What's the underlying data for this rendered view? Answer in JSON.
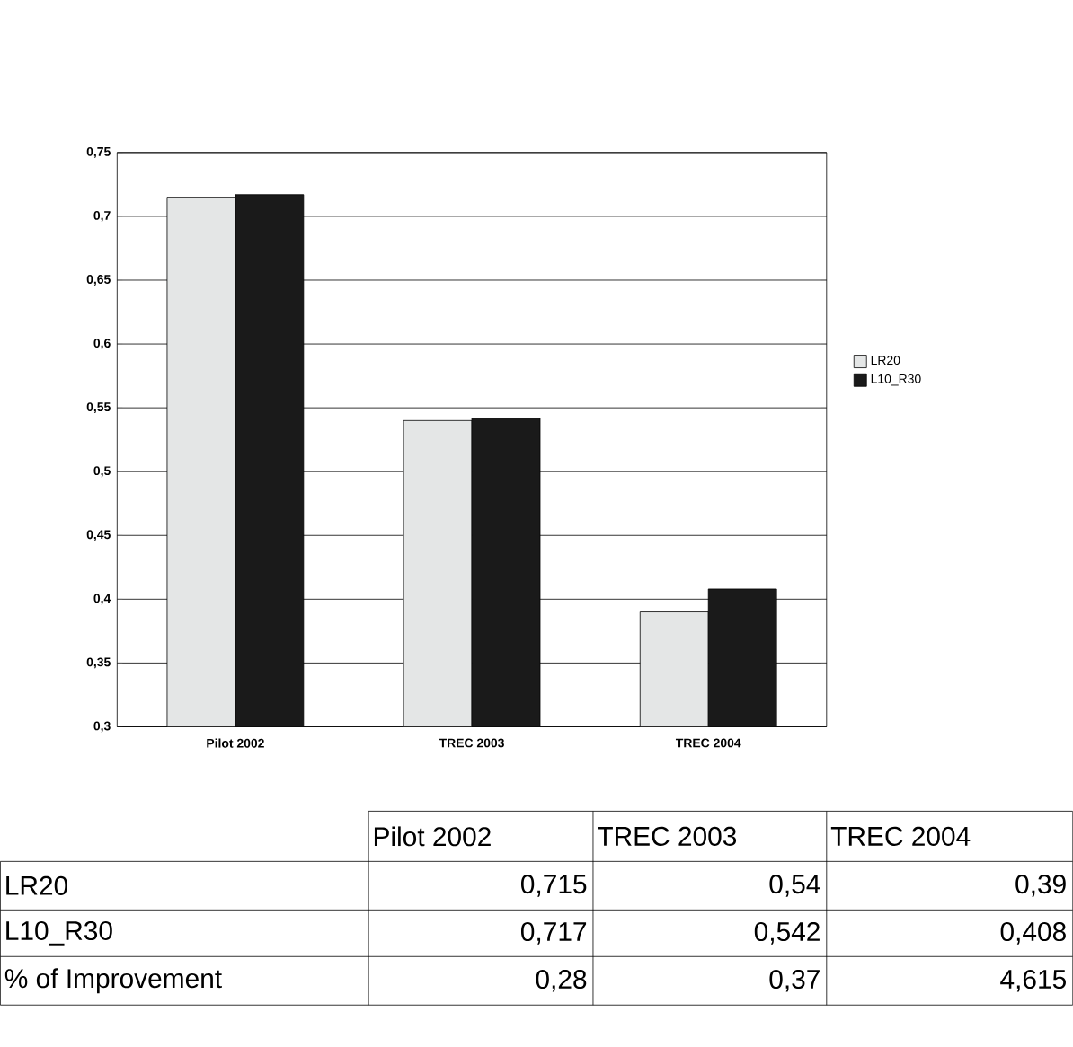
{
  "chart_data": {
    "type": "bar",
    "categories": [
      "Pilot 2002",
      "TREC 2003",
      "TREC 2004"
    ],
    "series": [
      {
        "name": "LR20",
        "color": "#e4e6e6",
        "values": [
          0.715,
          0.54,
          0.39
        ]
      },
      {
        "name": "L10_R30",
        "color": "#1a1a1a",
        "values": [
          0.717,
          0.542,
          0.408
        ]
      }
    ],
    "ylim": [
      0.3,
      0.75
    ],
    "yticks": [
      {
        "value": 0.3,
        "label": "0,3"
      },
      {
        "value": 0.35,
        "label": "0,35"
      },
      {
        "value": 0.4,
        "label": "0,4"
      },
      {
        "value": 0.45,
        "label": "0,45"
      },
      {
        "value": 0.5,
        "label": "0,5"
      },
      {
        "value": 0.55,
        "label": "0,55"
      },
      {
        "value": 0.6,
        "label": "0,6"
      },
      {
        "value": 0.65,
        "label": "0,65"
      },
      {
        "value": 0.7,
        "label": "0,7"
      },
      {
        "value": 0.75,
        "label": "0,75"
      }
    ],
    "grid": "y",
    "legend": "right",
    "annotations": [
      "0,715",
      "0,54",
      "0,39",
      "0,717",
      "0,542",
      "0,408",
      "% of Improvement",
      "0,28",
      "0,37",
      "4,615"
    ]
  }
}
